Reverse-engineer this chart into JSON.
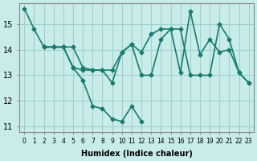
{
  "title": "",
  "xlabel": "Humidex (Indice chaleur)",
  "ylabel": "",
  "background_color": "#c8ecea",
  "grid_color": "#a0d0ce",
  "line_color": "#1a7a6e",
  "line_width": 1.2,
  "marker": "D",
  "marker_size": 2.5,
  "xlim": [
    -0.5,
    23.5
  ],
  "ylim": [
    10.8,
    15.8
  ],
  "yticks": [
    11,
    12,
    13,
    14,
    15
  ],
  "xticks": [
    0,
    1,
    2,
    3,
    4,
    5,
    6,
    7,
    8,
    9,
    10,
    11,
    12,
    13,
    14,
    15,
    16,
    17,
    18,
    19,
    20,
    21,
    22,
    23
  ],
  "series": [
    {
      "x": [
        0,
        1,
        2,
        3,
        4,
        5,
        6,
        7,
        8,
        9,
        10,
        11,
        12
      ],
      "y": [
        15.6,
        14.8,
        14.1,
        14.1,
        14.1,
        13.3,
        12.8,
        11.8,
        11.7,
        11.3,
        11.2,
        11.8,
        11.2
      ]
    },
    {
      "x": [
        2,
        3,
        4,
        5,
        6,
        7,
        8,
        9,
        10,
        11,
        12,
        13,
        14,
        15,
        16,
        17,
        18,
        19,
        20,
        21,
        22,
        23
      ],
      "y": [
        14.1,
        14.1,
        14.1,
        14.1,
        13.3,
        13.2,
        13.2,
        12.7,
        13.9,
        14.2,
        13.9,
        14.6,
        14.8,
        14.8,
        13.1,
        15.5,
        13.8,
        14.4,
        13.9,
        14.0,
        13.1,
        12.7
      ]
    },
    {
      "x": [
        2,
        3,
        4,
        5,
        6,
        7,
        8,
        9,
        10,
        11,
        12,
        13,
        14,
        15,
        16,
        17,
        18,
        19,
        20,
        21,
        22,
        23
      ],
      "y": [
        14.1,
        14.1,
        14.1,
        13.3,
        13.2,
        13.2,
        13.2,
        13.2,
        13.9,
        14.2,
        13.0,
        13.0,
        14.4,
        14.8,
        14.8,
        13.0,
        13.0,
        13.0,
        15.0,
        14.4,
        13.1,
        12.7
      ]
    }
  ]
}
